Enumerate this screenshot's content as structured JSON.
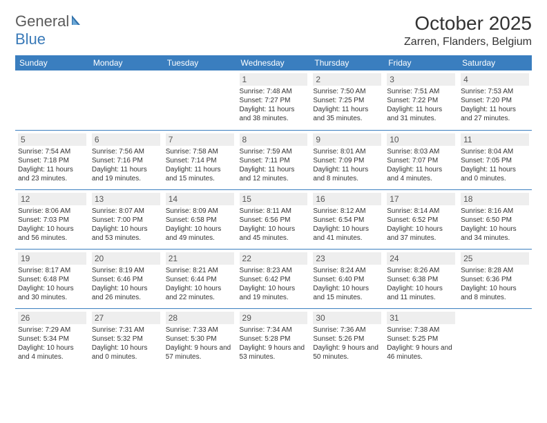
{
  "brand": {
    "part1": "General",
    "part2": "Blue"
  },
  "title": "October 2025",
  "location": "Zarren, Flanders, Belgium",
  "colors": {
    "header_bg": "#3a7ebf",
    "header_text": "#ffffff",
    "daynum_bg": "#eeeeee",
    "border": "#3a7ebf",
    "text": "#333333",
    "brand_gray": "#5a5a5a",
    "brand_blue": "#3a7ab8"
  },
  "weekdays": [
    "Sunday",
    "Monday",
    "Tuesday",
    "Wednesday",
    "Thursday",
    "Friday",
    "Saturday"
  ],
  "weeks": [
    [
      {
        "empty": true
      },
      {
        "empty": true
      },
      {
        "empty": true
      },
      {
        "num": "1",
        "sunrise": "Sunrise: 7:48 AM",
        "sunset": "Sunset: 7:27 PM",
        "daylight": "Daylight: 11 hours and 38 minutes."
      },
      {
        "num": "2",
        "sunrise": "Sunrise: 7:50 AM",
        "sunset": "Sunset: 7:25 PM",
        "daylight": "Daylight: 11 hours and 35 minutes."
      },
      {
        "num": "3",
        "sunrise": "Sunrise: 7:51 AM",
        "sunset": "Sunset: 7:22 PM",
        "daylight": "Daylight: 11 hours and 31 minutes."
      },
      {
        "num": "4",
        "sunrise": "Sunrise: 7:53 AM",
        "sunset": "Sunset: 7:20 PM",
        "daylight": "Daylight: 11 hours and 27 minutes."
      }
    ],
    [
      {
        "num": "5",
        "sunrise": "Sunrise: 7:54 AM",
        "sunset": "Sunset: 7:18 PM",
        "daylight": "Daylight: 11 hours and 23 minutes."
      },
      {
        "num": "6",
        "sunrise": "Sunrise: 7:56 AM",
        "sunset": "Sunset: 7:16 PM",
        "daylight": "Daylight: 11 hours and 19 minutes."
      },
      {
        "num": "7",
        "sunrise": "Sunrise: 7:58 AM",
        "sunset": "Sunset: 7:14 PM",
        "daylight": "Daylight: 11 hours and 15 minutes."
      },
      {
        "num": "8",
        "sunrise": "Sunrise: 7:59 AM",
        "sunset": "Sunset: 7:11 PM",
        "daylight": "Daylight: 11 hours and 12 minutes."
      },
      {
        "num": "9",
        "sunrise": "Sunrise: 8:01 AM",
        "sunset": "Sunset: 7:09 PM",
        "daylight": "Daylight: 11 hours and 8 minutes."
      },
      {
        "num": "10",
        "sunrise": "Sunrise: 8:03 AM",
        "sunset": "Sunset: 7:07 PM",
        "daylight": "Daylight: 11 hours and 4 minutes."
      },
      {
        "num": "11",
        "sunrise": "Sunrise: 8:04 AM",
        "sunset": "Sunset: 7:05 PM",
        "daylight": "Daylight: 11 hours and 0 minutes."
      }
    ],
    [
      {
        "num": "12",
        "sunrise": "Sunrise: 8:06 AM",
        "sunset": "Sunset: 7:03 PM",
        "daylight": "Daylight: 10 hours and 56 minutes."
      },
      {
        "num": "13",
        "sunrise": "Sunrise: 8:07 AM",
        "sunset": "Sunset: 7:00 PM",
        "daylight": "Daylight: 10 hours and 53 minutes."
      },
      {
        "num": "14",
        "sunrise": "Sunrise: 8:09 AM",
        "sunset": "Sunset: 6:58 PM",
        "daylight": "Daylight: 10 hours and 49 minutes."
      },
      {
        "num": "15",
        "sunrise": "Sunrise: 8:11 AM",
        "sunset": "Sunset: 6:56 PM",
        "daylight": "Daylight: 10 hours and 45 minutes."
      },
      {
        "num": "16",
        "sunrise": "Sunrise: 8:12 AM",
        "sunset": "Sunset: 6:54 PM",
        "daylight": "Daylight: 10 hours and 41 minutes."
      },
      {
        "num": "17",
        "sunrise": "Sunrise: 8:14 AM",
        "sunset": "Sunset: 6:52 PM",
        "daylight": "Daylight: 10 hours and 37 minutes."
      },
      {
        "num": "18",
        "sunrise": "Sunrise: 8:16 AM",
        "sunset": "Sunset: 6:50 PM",
        "daylight": "Daylight: 10 hours and 34 minutes."
      }
    ],
    [
      {
        "num": "19",
        "sunrise": "Sunrise: 8:17 AM",
        "sunset": "Sunset: 6:48 PM",
        "daylight": "Daylight: 10 hours and 30 minutes."
      },
      {
        "num": "20",
        "sunrise": "Sunrise: 8:19 AM",
        "sunset": "Sunset: 6:46 PM",
        "daylight": "Daylight: 10 hours and 26 minutes."
      },
      {
        "num": "21",
        "sunrise": "Sunrise: 8:21 AM",
        "sunset": "Sunset: 6:44 PM",
        "daylight": "Daylight: 10 hours and 22 minutes."
      },
      {
        "num": "22",
        "sunrise": "Sunrise: 8:23 AM",
        "sunset": "Sunset: 6:42 PM",
        "daylight": "Daylight: 10 hours and 19 minutes."
      },
      {
        "num": "23",
        "sunrise": "Sunrise: 8:24 AM",
        "sunset": "Sunset: 6:40 PM",
        "daylight": "Daylight: 10 hours and 15 minutes."
      },
      {
        "num": "24",
        "sunrise": "Sunrise: 8:26 AM",
        "sunset": "Sunset: 6:38 PM",
        "daylight": "Daylight: 10 hours and 11 minutes."
      },
      {
        "num": "25",
        "sunrise": "Sunrise: 8:28 AM",
        "sunset": "Sunset: 6:36 PM",
        "daylight": "Daylight: 10 hours and 8 minutes."
      }
    ],
    [
      {
        "num": "26",
        "sunrise": "Sunrise: 7:29 AM",
        "sunset": "Sunset: 5:34 PM",
        "daylight": "Daylight: 10 hours and 4 minutes."
      },
      {
        "num": "27",
        "sunrise": "Sunrise: 7:31 AM",
        "sunset": "Sunset: 5:32 PM",
        "daylight": "Daylight: 10 hours and 0 minutes."
      },
      {
        "num": "28",
        "sunrise": "Sunrise: 7:33 AM",
        "sunset": "Sunset: 5:30 PM",
        "daylight": "Daylight: 9 hours and 57 minutes."
      },
      {
        "num": "29",
        "sunrise": "Sunrise: 7:34 AM",
        "sunset": "Sunset: 5:28 PM",
        "daylight": "Daylight: 9 hours and 53 minutes."
      },
      {
        "num": "30",
        "sunrise": "Sunrise: 7:36 AM",
        "sunset": "Sunset: 5:26 PM",
        "daylight": "Daylight: 9 hours and 50 minutes."
      },
      {
        "num": "31",
        "sunrise": "Sunrise: 7:38 AM",
        "sunset": "Sunset: 5:25 PM",
        "daylight": "Daylight: 9 hours and 46 minutes."
      },
      {
        "empty": true
      }
    ]
  ]
}
